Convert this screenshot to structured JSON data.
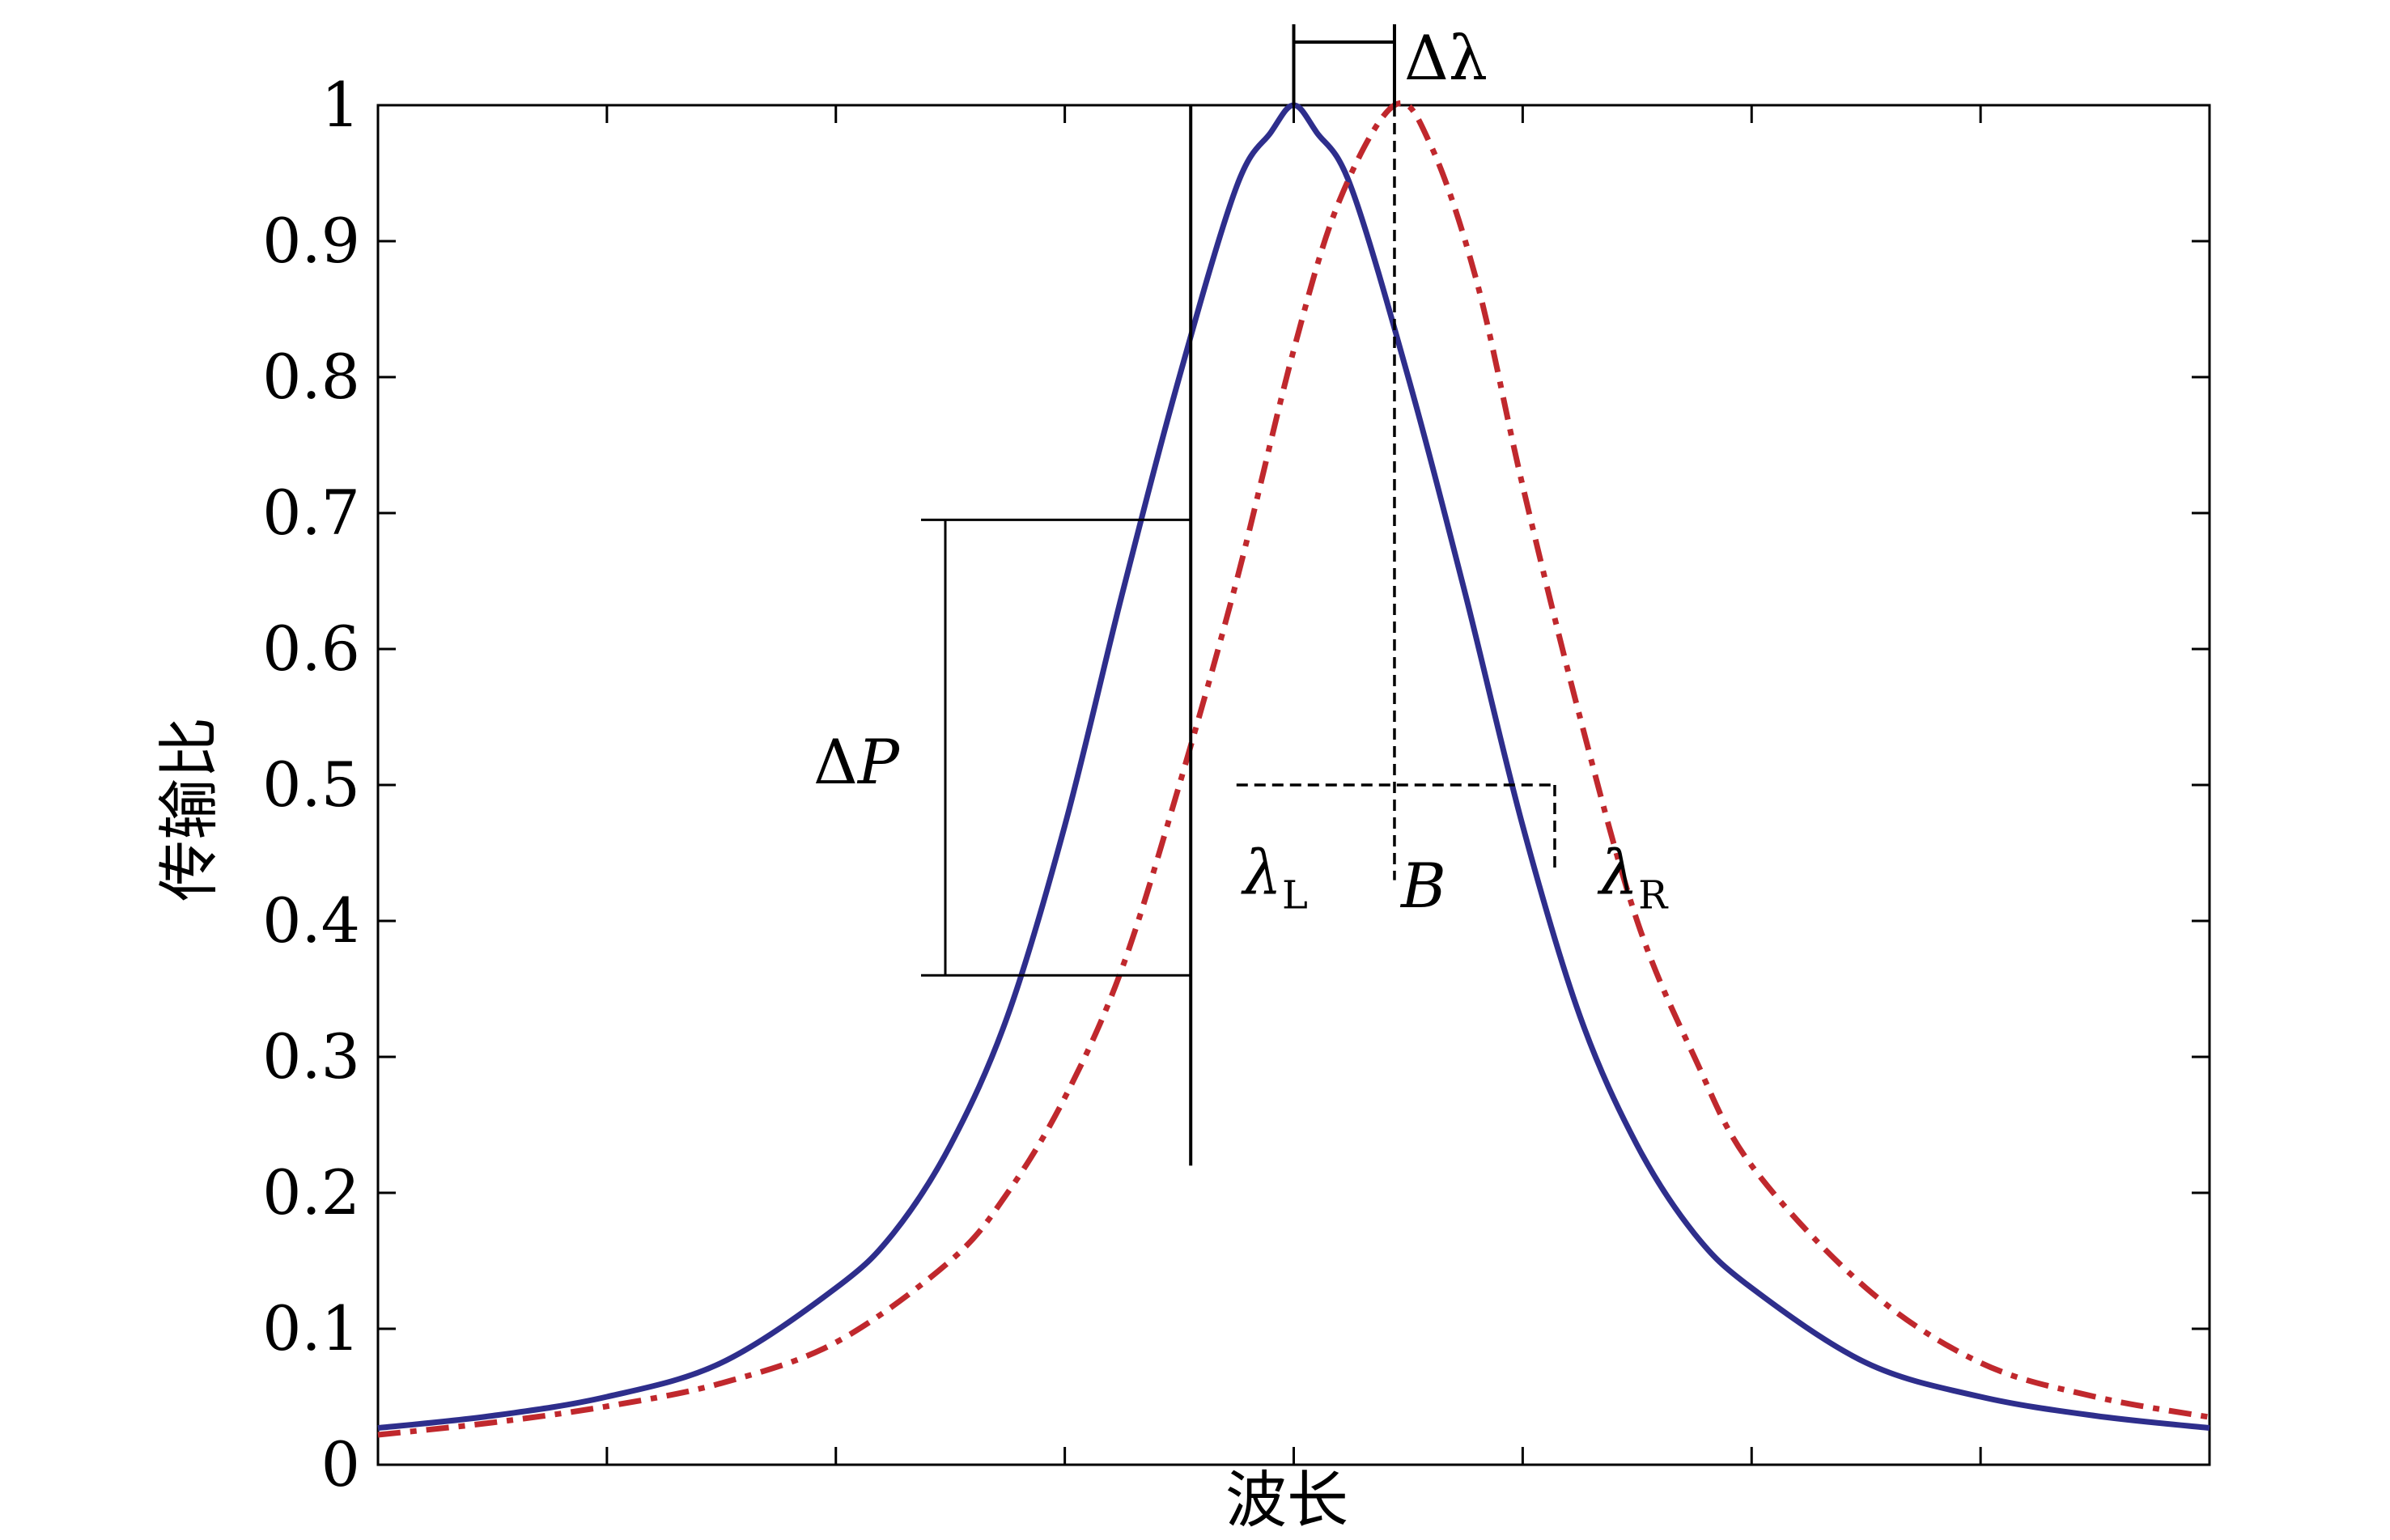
{
  "chart_data": {
    "type": "line",
    "title": "",
    "xlabel": "波长",
    "ylabel": "传输比",
    "xlim": [
      -4,
      4
    ],
    "ylim": [
      0,
      1
    ],
    "yticks": [
      0,
      0.1,
      0.2,
      0.3,
      0.4,
      0.5,
      0.6,
      0.7,
      0.8,
      0.9,
      1
    ],
    "ytick_labels": [
      "0",
      "0.1",
      "0.2",
      "0.3",
      "0.4",
      "0.5",
      "0.6",
      "0.7",
      "0.8",
      "0.9",
      "1"
    ],
    "xticks": [
      -3,
      -2,
      -1,
      0,
      1,
      2,
      3
    ],
    "grid": false,
    "series": [
      {
        "color": "#2e2e8c",
        "style": "solid",
        "x": [
          -4,
          -3.5,
          -3,
          -2.5,
          -2,
          -1.75,
          -1.5,
          -1.25,
          -1,
          -0.75,
          -0.5,
          -0.25,
          -0.1,
          0,
          0.1,
          0.25,
          0.5,
          0.75,
          1,
          1.25,
          1.5,
          1.75,
          2,
          2.5,
          3,
          3.5,
          4
        ],
        "y": [
          0.027,
          0.036,
          0.05,
          0.075,
          0.13,
          0.17,
          0.235,
          0.33,
          0.47,
          0.64,
          0.8,
          0.94,
          0.98,
          1.0,
          0.98,
          0.94,
          0.8,
          0.64,
          0.47,
          0.33,
          0.235,
          0.17,
          0.13,
          0.075,
          0.05,
          0.036,
          0.027
        ]
      },
      {
        "color": "#c0282d",
        "style": "dashdot",
        "x": [
          -4,
          -3.5,
          -3,
          -2.5,
          -2,
          -1.5,
          -1.25,
          -1,
          -0.75,
          -0.5,
          -0.25,
          0,
          0.2,
          0.44,
          0.6,
          0.8,
          1,
          1.25,
          1.5,
          1.75,
          2,
          2.5,
          3,
          3.5,
          4
        ],
        "y": [
          0.022,
          0.031,
          0.043,
          0.06,
          0.09,
          0.15,
          0.2,
          0.27,
          0.365,
          0.5,
          0.65,
          0.82,
          0.93,
          1.0,
          0.97,
          0.87,
          0.72,
          0.55,
          0.4,
          0.3,
          0.22,
          0.13,
          0.075,
          0.05,
          0.035
        ]
      }
    ],
    "annotations": {
      "delta_lambda": "Δλ",
      "delta_p": "ΔP",
      "lambda_l": "λ",
      "lambda_l_sub": "L",
      "lambda_r": "λ",
      "lambda_r_sub": "R",
      "b": "B"
    }
  }
}
